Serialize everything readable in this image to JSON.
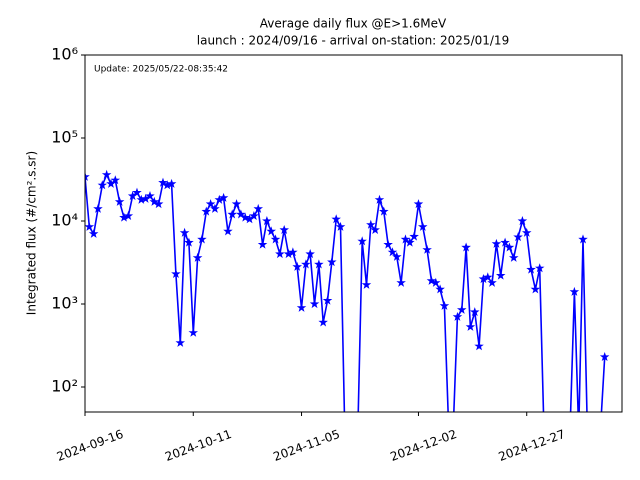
{
  "chart_data": {
    "type": "line",
    "title": "Average daily flux @E>1.6MeV",
    "subtitle": "launch : 2024/09/16 - arrival on-station: 2025/01/19",
    "annotation": "Update: 2025/05/22-08:35:42",
    "y_label": "Integrated flux (#/cm².s.sr)",
    "log_y": true,
    "marker": "star",
    "x": [
      "2024-09-16",
      "2024-09-17",
      "2024-09-18",
      "2024-09-19",
      "2024-09-20",
      "2024-09-21",
      "2024-09-22",
      "2024-09-23",
      "2024-09-24",
      "2024-09-25",
      "2024-09-26",
      "2024-09-27",
      "2024-09-28",
      "2024-09-29",
      "2024-09-30",
      "2024-10-01",
      "2024-10-02",
      "2024-10-03",
      "2024-10-04",
      "2024-10-05",
      "2024-10-06",
      "2024-10-07",
      "2024-10-08",
      "2024-10-09",
      "2024-10-10",
      "2024-10-11",
      "2024-10-12",
      "2024-10-13",
      "2024-10-14",
      "2024-10-15",
      "2024-10-16",
      "2024-10-17",
      "2024-10-18",
      "2024-10-19",
      "2024-10-20",
      "2024-10-21",
      "2024-10-22",
      "2024-10-23",
      "2024-10-24",
      "2024-10-25",
      "2024-10-26",
      "2024-10-27",
      "2024-10-28",
      "2024-10-29",
      "2024-10-30",
      "2024-10-31",
      "2024-11-01",
      "2024-11-02",
      "2024-11-03",
      "2024-11-04",
      "2024-11-05",
      "2024-11-06",
      "2024-11-07",
      "2024-11-08",
      "2024-11-09",
      "2024-11-10",
      "2024-11-11",
      "2024-11-12",
      "2024-11-13",
      "2024-11-14",
      "2024-11-15",
      "2024-11-16",
      "2024-11-17",
      "2024-11-18",
      "2024-11-19",
      "2024-11-20",
      "2024-11-21",
      "2024-11-22",
      "2024-11-23",
      "2024-11-24",
      "2024-11-25",
      "2024-11-26",
      "2024-11-27",
      "2024-11-28",
      "2024-11-29",
      "2024-11-30",
      "2024-12-01",
      "2024-12-02",
      "2024-12-03",
      "2024-12-04",
      "2024-12-05",
      "2024-12-06",
      "2024-12-07",
      "2024-12-08",
      "2024-12-09",
      "2024-12-10",
      "2024-12-11",
      "2024-12-12",
      "2024-12-13",
      "2024-12-14",
      "2024-12-15",
      "2024-12-16",
      "2024-12-17",
      "2024-12-18",
      "2024-12-19",
      "2024-12-20",
      "2024-12-21",
      "2024-12-22",
      "2024-12-23",
      "2024-12-24",
      "2024-12-25",
      "2024-12-26",
      "2024-12-27",
      "2024-12-28",
      "2024-12-29",
      "2024-12-30",
      "2024-12-31",
      "2025-01-01",
      "2025-01-02",
      "2025-01-03",
      "2025-01-04",
      "2025-01-05",
      "2025-01-06",
      "2025-01-07",
      "2025-01-08",
      "2025-01-09",
      "2025-01-10",
      "2025-01-11",
      "2025-01-12",
      "2025-01-13",
      "2025-01-14"
    ],
    "series": [
      {
        "color": "#0000ff",
        "values": [
          34000,
          8500,
          7000,
          14000,
          27000,
          36000,
          28000,
          31000,
          17000,
          11000,
          11500,
          20000,
          22000,
          18000,
          18500,
          20000,
          17000,
          16000,
          29000,
          27000,
          28000,
          2300,
          340,
          7200,
          5500,
          450,
          3600,
          6000,
          13000,
          16000,
          14000,
          18000,
          19000,
          7500,
          12000,
          16000,
          12000,
          11000,
          10500,
          11500,
          14000,
          5200,
          10000,
          7500,
          6000,
          4000,
          7800,
          4000,
          4200,
          2800,
          900,
          3000,
          4000,
          1000,
          3000,
          600,
          1100,
          3200,
          10500,
          8500,
          0,
          0,
          0,
          0,
          5700,
          1700,
          9000,
          7800,
          18000,
          13000,
          5200,
          4200,
          3700,
          1800,
          6000,
          5500,
          6500,
          16000,
          8500,
          4500,
          1900,
          1800,
          1500,
          950,
          0,
          0,
          700,
          850,
          4800,
          530,
          800,
          310,
          2000,
          2100,
          1800,
          5300,
          2200,
          5500,
          4800,
          3600,
          6400,
          10000,
          7200,
          2600,
          1500,
          2700,
          0,
          0,
          0,
          0,
          0,
          0,
          0,
          1400,
          0,
          6000,
          0,
          0,
          0,
          0,
          230
        ]
      }
    ],
    "xlim": [
      "2024-09-16",
      "2025-01-18"
    ],
    "xticks": [
      "2024-09-16",
      "2024-10-11",
      "2024-11-05",
      "2024-12-02",
      "2024-12-27"
    ],
    "ylim": [
      50,
      1000000
    ],
    "yticks": [
      {
        "value": 100,
        "label": "10²"
      },
      {
        "value": 1000,
        "label": "10³"
      },
      {
        "value": 10000,
        "label": "10⁴"
      },
      {
        "value": 100000,
        "label": "10⁵"
      },
      {
        "value": 1000000,
        "label": "10⁶"
      }
    ]
  }
}
